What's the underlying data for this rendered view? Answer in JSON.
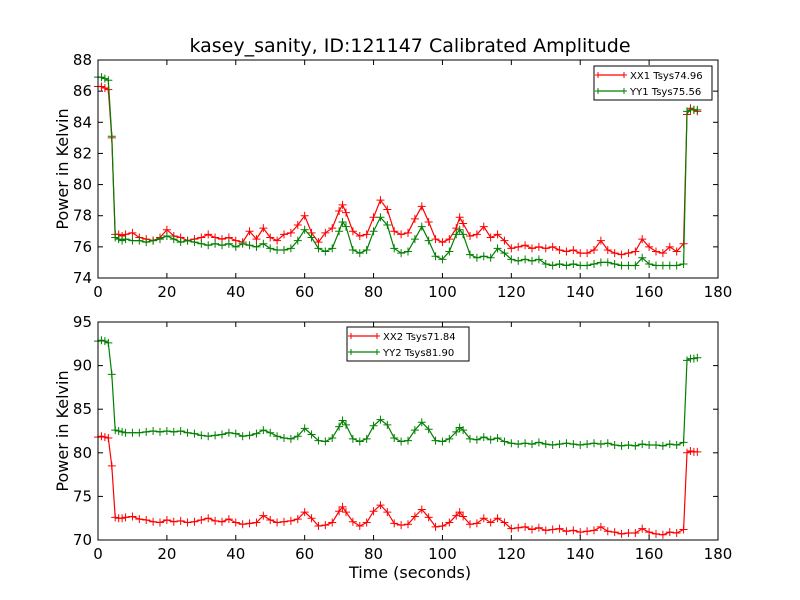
{
  "figure": {
    "title": "kasey_sanity, ID:121147 Calibrated Amplitude",
    "xlabel": "Time (seconds)"
  },
  "chart_data": [
    {
      "type": "line",
      "xlim": [
        0,
        180
      ],
      "ylim": [
        74,
        88
      ],
      "xticks": [
        0,
        20,
        40,
        60,
        80,
        100,
        120,
        140,
        160,
        180
      ],
      "yticks": [
        74,
        76,
        78,
        80,
        82,
        84,
        86,
        88
      ],
      "xlabel": "",
      "ylabel": "Power in Kelvin",
      "legend_position": "top-right",
      "grid": false,
      "series": [
        {
          "name": "XX1 Tsys74.96",
          "color": "#ff0000",
          "x": [
            0,
            1,
            2,
            3,
            4,
            5,
            6,
            7,
            8,
            10,
            12,
            14,
            16,
            18,
            20,
            22,
            24,
            26,
            28,
            30,
            32,
            34,
            36,
            38,
            40,
            42,
            44,
            46,
            48,
            50,
            52,
            54,
            56,
            58,
            60,
            62,
            64,
            66,
            68,
            70,
            71,
            72,
            74,
            76,
            78,
            80,
            82,
            84,
            86,
            88,
            90,
            92,
            94,
            96,
            98,
            100,
            102,
            104,
            105,
            106,
            108,
            110,
            112,
            114,
            116,
            118,
            120,
            122,
            124,
            126,
            128,
            130,
            132,
            134,
            136,
            138,
            140,
            142,
            144,
            146,
            148,
            150,
            152,
            154,
            156,
            158,
            160,
            162,
            164,
            166,
            168,
            170,
            171,
            172,
            173,
            174
          ],
          "values": [
            86.3,
            86.3,
            86.2,
            86.1,
            83.0,
            76.8,
            76.8,
            76.7,
            76.8,
            76.9,
            76.6,
            76.5,
            76.4,
            76.6,
            77.1,
            76.7,
            76.6,
            76.4,
            76.5,
            76.6,
            76.8,
            76.6,
            76.5,
            76.6,
            76.4,
            76.3,
            77.0,
            76.5,
            77.2,
            76.6,
            76.4,
            76.8,
            76.9,
            77.4,
            78.0,
            76.9,
            76.3,
            76.9,
            77.2,
            78.3,
            78.7,
            78.2,
            77.0,
            76.7,
            76.8,
            77.9,
            79.0,
            78.4,
            77.0,
            76.8,
            76.9,
            77.8,
            78.6,
            77.6,
            76.5,
            76.3,
            76.5,
            77.2,
            77.9,
            77.5,
            76.7,
            76.8,
            77.3,
            76.6,
            76.8,
            76.4,
            75.9,
            76.0,
            76.1,
            75.9,
            76.0,
            75.9,
            76.0,
            75.8,
            75.7,
            75.8,
            75.6,
            75.6,
            75.8,
            76.4,
            75.8,
            75.6,
            75.5,
            75.6,
            75.7,
            76.5,
            76.0,
            75.7,
            75.6,
            76.0,
            75.7,
            76.2,
            84.5,
            84.9,
            84.8,
            84.7
          ]
        },
        {
          "name": "YY1 Tsys75.56",
          "color": "#008000",
          "x": [
            0,
            1,
            2,
            3,
            4,
            5,
            6,
            7,
            8,
            10,
            12,
            14,
            16,
            18,
            20,
            22,
            24,
            26,
            28,
            30,
            32,
            34,
            36,
            38,
            40,
            42,
            44,
            46,
            48,
            50,
            52,
            54,
            56,
            58,
            60,
            62,
            64,
            66,
            68,
            70,
            71,
            72,
            74,
            76,
            78,
            80,
            82,
            84,
            86,
            88,
            90,
            92,
            94,
            96,
            98,
            100,
            102,
            104,
            105,
            106,
            108,
            110,
            112,
            114,
            116,
            118,
            120,
            122,
            124,
            126,
            128,
            130,
            132,
            134,
            136,
            138,
            140,
            142,
            144,
            146,
            148,
            150,
            152,
            154,
            156,
            158,
            160,
            162,
            164,
            166,
            168,
            170,
            171,
            172,
            173,
            174
          ],
          "values": [
            86.9,
            86.9,
            86.8,
            86.7,
            83.1,
            76.6,
            76.5,
            76.4,
            76.5,
            76.4,
            76.4,
            76.3,
            76.4,
            76.5,
            76.7,
            76.5,
            76.3,
            76.4,
            76.3,
            76.2,
            76.1,
            76.2,
            76.1,
            76.2,
            76.0,
            76.2,
            76.1,
            76.0,
            76.2,
            75.9,
            75.8,
            75.8,
            75.9,
            76.4,
            77.1,
            76.6,
            75.9,
            75.7,
            75.9,
            77.0,
            77.6,
            77.3,
            75.8,
            75.6,
            75.8,
            77.0,
            77.9,
            77.4,
            75.9,
            75.6,
            75.7,
            76.5,
            77.3,
            76.4,
            75.4,
            75.2,
            75.7,
            76.8,
            77.1,
            76.8,
            75.5,
            75.3,
            75.4,
            75.3,
            75.9,
            75.6,
            75.2,
            75.1,
            75.2,
            75.1,
            75.2,
            74.9,
            74.8,
            74.9,
            74.8,
            74.9,
            74.8,
            74.8,
            74.9,
            75.0,
            75.0,
            74.9,
            74.8,
            74.8,
            74.8,
            75.3,
            74.9,
            74.8,
            74.8,
            74.8,
            74.8,
            74.9,
            84.7,
            84.8,
            84.8,
            84.8
          ]
        }
      ]
    },
    {
      "type": "line",
      "xlim": [
        0,
        180
      ],
      "ylim": [
        70,
        95
      ],
      "xticks": [
        0,
        20,
        40,
        60,
        80,
        100,
        120,
        140,
        160,
        180
      ],
      "yticks": [
        70,
        75,
        80,
        85,
        90,
        95
      ],
      "xlabel": "Time (seconds)",
      "ylabel": "Power in Kelvin",
      "legend_position": "top-center",
      "grid": false,
      "series": [
        {
          "name": "XX2 Tsys71.84",
          "color": "#ff0000",
          "x": [
            0,
            1,
            2,
            3,
            4,
            5,
            6,
            7,
            8,
            10,
            12,
            14,
            16,
            18,
            20,
            22,
            24,
            26,
            28,
            30,
            32,
            34,
            36,
            38,
            40,
            42,
            44,
            46,
            48,
            50,
            52,
            54,
            56,
            58,
            60,
            62,
            64,
            66,
            68,
            70,
            71,
            72,
            74,
            76,
            78,
            80,
            82,
            84,
            86,
            88,
            90,
            92,
            94,
            96,
            98,
            100,
            102,
            104,
            105,
            106,
            108,
            110,
            112,
            114,
            116,
            118,
            120,
            122,
            124,
            126,
            128,
            130,
            132,
            134,
            136,
            138,
            140,
            142,
            144,
            146,
            148,
            150,
            152,
            154,
            156,
            158,
            160,
            162,
            164,
            166,
            168,
            170,
            171,
            172,
            173,
            174
          ],
          "values": [
            81.8,
            81.9,
            81.8,
            81.7,
            78.5,
            72.6,
            72.5,
            72.5,
            72.6,
            72.7,
            72.4,
            72.3,
            72.1,
            72.0,
            72.3,
            72.1,
            72.2,
            72.0,
            72.1,
            72.3,
            72.5,
            72.2,
            72.1,
            72.4,
            72.0,
            71.8,
            71.9,
            72.0,
            72.8,
            72.3,
            72.0,
            72.1,
            72.2,
            72.4,
            73.2,
            72.5,
            71.6,
            71.7,
            72.0,
            73.3,
            73.8,
            73.2,
            72.1,
            71.6,
            72.0,
            73.3,
            74.0,
            73.2,
            71.9,
            71.7,
            71.8,
            72.7,
            73.5,
            72.6,
            71.5,
            71.6,
            72.0,
            72.8,
            73.2,
            72.7,
            71.8,
            71.9,
            72.5,
            72.0,
            72.5,
            72.0,
            71.3,
            71.4,
            71.5,
            71.2,
            71.4,
            71.1,
            71.2,
            71.3,
            71.0,
            71.1,
            70.9,
            71.0,
            71.1,
            71.5,
            71.0,
            70.9,
            70.7,
            70.8,
            70.8,
            71.3,
            70.9,
            70.7,
            70.6,
            70.9,
            70.8,
            71.2,
            80.0,
            80.2,
            80.1,
            80.1
          ]
        },
        {
          "name": "YY2 Tsys81.90",
          "color": "#008000",
          "x": [
            0,
            1,
            2,
            3,
            4,
            5,
            6,
            7,
            8,
            10,
            12,
            14,
            16,
            18,
            20,
            22,
            24,
            26,
            28,
            30,
            32,
            34,
            36,
            38,
            40,
            42,
            44,
            46,
            48,
            50,
            52,
            54,
            56,
            58,
            60,
            62,
            64,
            66,
            68,
            70,
            71,
            72,
            74,
            76,
            78,
            80,
            82,
            84,
            86,
            88,
            90,
            92,
            94,
            96,
            98,
            100,
            102,
            104,
            105,
            106,
            108,
            110,
            112,
            114,
            116,
            118,
            120,
            122,
            124,
            126,
            128,
            130,
            132,
            134,
            136,
            138,
            140,
            142,
            144,
            146,
            148,
            150,
            152,
            154,
            156,
            158,
            160,
            162,
            164,
            166,
            168,
            170,
            171,
            172,
            173,
            174
          ],
          "values": [
            92.8,
            92.9,
            92.8,
            92.6,
            89.0,
            82.6,
            82.5,
            82.4,
            82.3,
            82.3,
            82.3,
            82.4,
            82.5,
            82.4,
            82.5,
            82.4,
            82.5,
            82.3,
            82.2,
            82.0,
            81.9,
            82.0,
            82.1,
            82.3,
            82.2,
            81.9,
            82.0,
            82.2,
            82.6,
            82.3,
            81.9,
            81.7,
            81.6,
            81.9,
            82.8,
            82.1,
            81.4,
            81.3,
            81.7,
            83.0,
            83.7,
            83.2,
            81.6,
            81.3,
            81.6,
            83.1,
            83.8,
            83.2,
            81.7,
            81.3,
            81.4,
            82.6,
            83.5,
            82.7,
            81.4,
            81.3,
            81.6,
            82.4,
            82.9,
            82.6,
            81.6,
            81.5,
            81.8,
            81.5,
            81.7,
            81.3,
            81.1,
            81.0,
            81.1,
            81.0,
            81.2,
            81.0,
            80.9,
            81.0,
            81.1,
            81.0,
            80.9,
            81.0,
            81.1,
            81.0,
            81.1,
            80.9,
            80.8,
            80.9,
            80.8,
            81.0,
            80.9,
            80.9,
            80.8,
            81.0,
            80.9,
            81.2,
            90.6,
            90.8,
            90.8,
            90.9
          ]
        }
      ]
    }
  ]
}
